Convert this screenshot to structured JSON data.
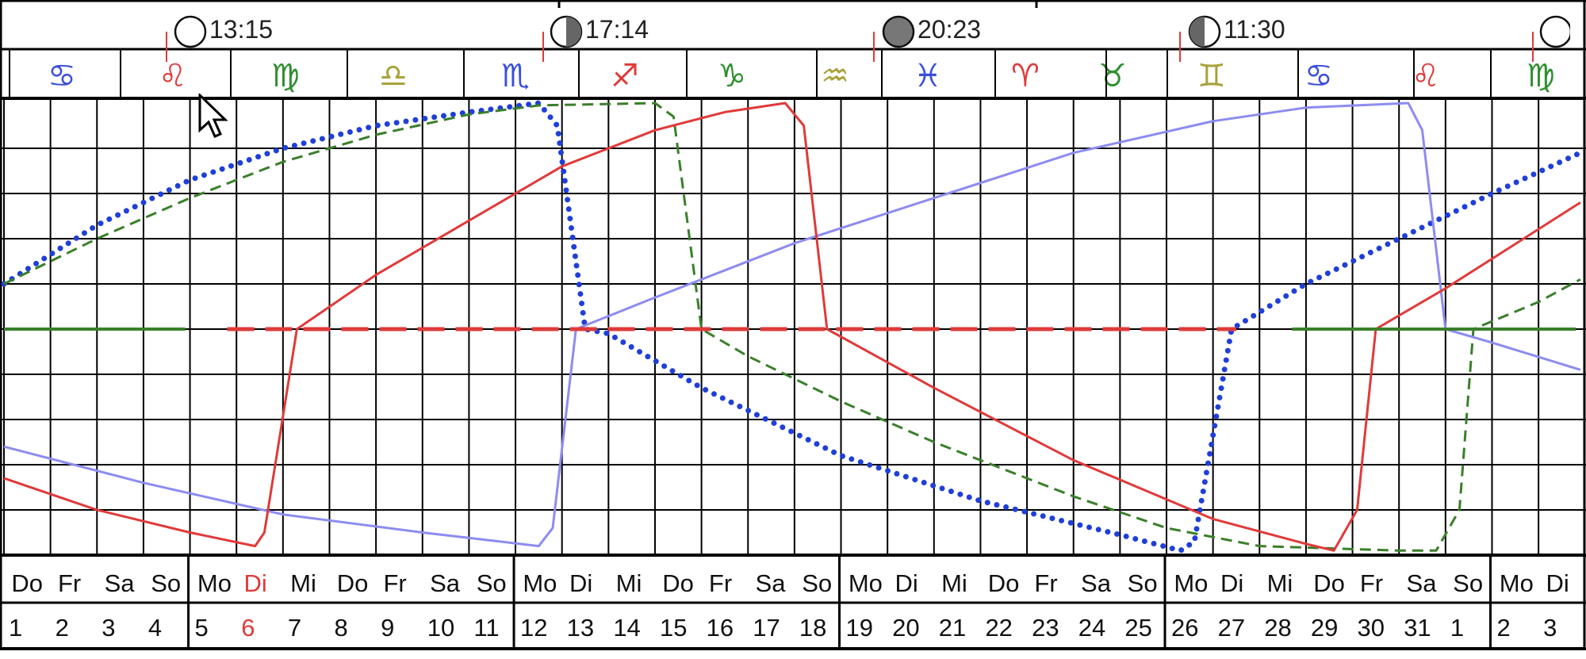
{
  "moon_phases": [
    {
      "time": "13:15",
      "phase": "full"
    },
    {
      "time": "17:14",
      "phase": "last-quarter"
    },
    {
      "time": "20:23",
      "phase": "new"
    },
    {
      "time": "11:30",
      "phase": "first-quarter"
    }
  ],
  "zodiac": [
    {
      "glyph": "♋",
      "color": "#3b4fd8"
    },
    {
      "glyph": "♌",
      "color": "#e03a3a"
    },
    {
      "glyph": "♍",
      "color": "#2f8f2f"
    },
    {
      "glyph": "♎",
      "color": "#a8a23a"
    },
    {
      "glyph": "♏",
      "color": "#3b4fd8"
    },
    {
      "glyph": "♐",
      "color": "#e03a3a"
    },
    {
      "glyph": "♑",
      "color": "#2f8f2f"
    },
    {
      "glyph": "♒",
      "color": "#a8a23a"
    },
    {
      "glyph": "♓",
      "color": "#3b4fd8"
    },
    {
      "glyph": "♈",
      "color": "#e03a3a"
    },
    {
      "glyph": "♉",
      "color": "#2f8f2f"
    },
    {
      "glyph": "♊",
      "color": "#a8a23a"
    },
    {
      "glyph": "♋",
      "color": "#3b4fd8"
    },
    {
      "glyph": "♌",
      "color": "#e03a3a"
    },
    {
      "glyph": "♍",
      "color": "#2f8f2f"
    }
  ],
  "weekdays": [
    "Do",
    "Fr",
    "Sa",
    "So",
    "Mo",
    "Di",
    "Mi",
    "Do",
    "Fr",
    "Sa",
    "So",
    "Mo",
    "Di",
    "Mi",
    "Do",
    "Fr",
    "Sa",
    "So",
    "Mo",
    "Di",
    "Mi",
    "Do",
    "Fr",
    "Sa",
    "So",
    "Mo",
    "Di",
    "Mi",
    "Do",
    "Fr",
    "Sa",
    "So",
    "Mo",
    "Di"
  ],
  "day_numbers": [
    "1",
    "2",
    "3",
    "4",
    "5",
    "6",
    "7",
    "8",
    "9",
    "10",
    "11",
    "12",
    "13",
    "14",
    "15",
    "16",
    "17",
    "18",
    "19",
    "20",
    "21",
    "22",
    "23",
    "24",
    "25",
    "26",
    "27",
    "28",
    "29",
    "30",
    "31",
    "1",
    "2",
    "3"
  ],
  "highlight_day_index": 5,
  "colors": {
    "grid": "#000000",
    "red": "#e03a3a",
    "lightblue": "#8c8cf0",
    "blue": "#1f3fd8",
    "green": "#3a7f2a",
    "highlight": "#e03a3a"
  },
  "chart_data": {
    "type": "line",
    "x_unit": "day",
    "ylim": [
      0,
      10
    ],
    "grid": true,
    "series": [
      {
        "style": "dotted",
        "color": "#1f3fd8",
        "points": [
          [
            0,
            6
          ],
          [
            2,
            7.3
          ],
          [
            4,
            8.3
          ],
          [
            6,
            9
          ],
          [
            8,
            9.5
          ],
          [
            10,
            9.8
          ],
          [
            11.5,
            10
          ],
          [
            11.9,
            9.5
          ],
          [
            12.5,
            5
          ],
          [
            13,
            4.9
          ],
          [
            15,
            3.7
          ],
          [
            18,
            2.2
          ],
          [
            21,
            1.2
          ],
          [
            24,
            0.45
          ],
          [
            25.3,
            0.1
          ],
          [
            25.6,
            0.3
          ],
          [
            26.4,
            5
          ],
          [
            28,
            6
          ],
          [
            30,
            7
          ],
          [
            32,
            8
          ],
          [
            33.9,
            8.9
          ]
        ]
      },
      {
        "style": "dashed",
        "color": "#3a7f2a",
        "points": [
          [
            0,
            6
          ],
          [
            2,
            7
          ],
          [
            4,
            7.9
          ],
          [
            6,
            8.7
          ],
          [
            8,
            9.3
          ],
          [
            10,
            9.75
          ],
          [
            11.5,
            9.95
          ],
          [
            14,
            10
          ],
          [
            14.4,
            9.7
          ],
          [
            15,
            5
          ],
          [
            16,
            4.4
          ],
          [
            18,
            3.4
          ],
          [
            20,
            2.5
          ],
          [
            23,
            1.3
          ],
          [
            25,
            0.6
          ],
          [
            27,
            0.2
          ],
          [
            30,
            0.1
          ],
          [
            30.8,
            0.1
          ],
          [
            31.3,
            1
          ],
          [
            31.6,
            5
          ],
          [
            33,
            5.6
          ],
          [
            33.9,
            6.1
          ]
        ]
      },
      {
        "style": "solid",
        "color": "#8c8cf0",
        "points": [
          [
            0,
            2.4
          ],
          [
            3,
            1.6
          ],
          [
            6,
            0.9
          ],
          [
            9,
            0.5
          ],
          [
            11.5,
            0.2
          ],
          [
            11.8,
            0.6
          ],
          [
            12.3,
            5
          ],
          [
            14,
            5.7
          ],
          [
            17,
            6.9
          ],
          [
            20,
            7.9
          ],
          [
            23,
            8.9
          ],
          [
            26,
            9.6
          ],
          [
            28,
            9.9
          ],
          [
            30.2,
            10
          ],
          [
            30.5,
            9.4
          ],
          [
            31,
            5
          ],
          [
            32,
            4.7
          ],
          [
            33.9,
            4.1
          ]
        ]
      },
      {
        "style": "solid",
        "color": "#e03a3a",
        "points": [
          [
            0,
            1.7
          ],
          [
            2,
            1
          ],
          [
            4,
            0.5
          ],
          [
            5.4,
            0.2
          ],
          [
            5.6,
            0.5
          ],
          [
            6.3,
            5
          ],
          [
            8,
            6.2
          ],
          [
            10,
            7.4
          ],
          [
            12,
            8.6
          ],
          [
            14,
            9.4
          ],
          [
            15.5,
            9.8
          ],
          [
            16.8,
            10
          ],
          [
            17.2,
            9.5
          ],
          [
            17.7,
            5
          ],
          [
            20,
            3.7
          ],
          [
            23,
            2.1
          ],
          [
            26,
            0.8
          ],
          [
            28,
            0.25
          ],
          [
            28.6,
            0.1
          ],
          [
            29.1,
            1
          ],
          [
            29.5,
            5
          ],
          [
            31,
            5.9
          ],
          [
            33.9,
            7.8
          ]
        ]
      },
      {
        "style": "hline",
        "color": "#3a7f2a",
        "points": [
          [
            0,
            5
          ],
          [
            3.9,
            5
          ]
        ]
      },
      {
        "style": "hline-dashed",
        "color": "#e03a3a",
        "points": [
          [
            4.8,
            5
          ],
          [
            26.5,
            5
          ]
        ]
      },
      {
        "style": "hline",
        "color": "#3a7f2a",
        "points": [
          [
            27.7,
            5
          ],
          [
            33.8,
            5
          ]
        ]
      }
    ]
  }
}
